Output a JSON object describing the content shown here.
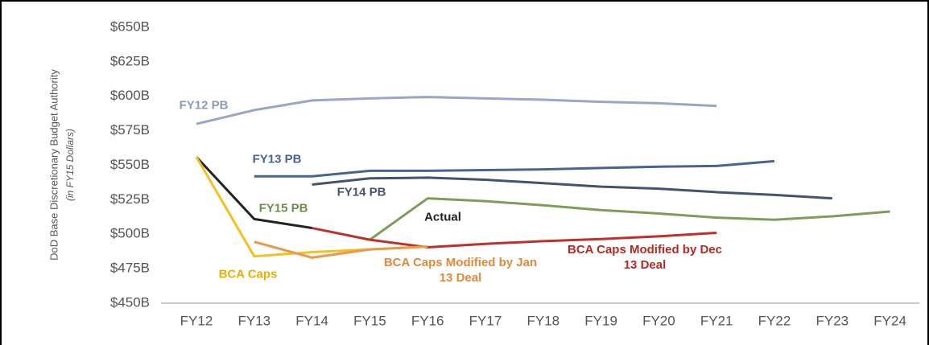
{
  "chart_data": {
    "type": "line",
    "y_label": "DoD Base Discretionary Budget Authority",
    "y_label_note": "(in FY15 Dollars)",
    "categories": [
      "FY12",
      "FY13",
      "FY14",
      "FY15",
      "FY16",
      "FY17",
      "FY18",
      "FY19",
      "FY20",
      "FY21",
      "FY22",
      "FY23",
      "FY24"
    ],
    "ylim": [
      450,
      650
    ],
    "yticks": [
      {
        "value": 450,
        "label": "$450B"
      },
      {
        "value": 475,
        "label": "$475B"
      },
      {
        "value": 500,
        "label": "$500B"
      },
      {
        "value": 525,
        "label": "$525B"
      },
      {
        "value": 550,
        "label": "$550B"
      },
      {
        "value": 575,
        "label": "$575B"
      },
      {
        "value": 600,
        "label": "$600B"
      },
      {
        "value": 625,
        "label": "$625B"
      },
      {
        "value": 650,
        "label": "$650B"
      }
    ],
    "grid": false,
    "series": [
      {
        "name": "FY12 PB",
        "color": "#9aa6c4",
        "values": [
          580,
          590,
          597,
          598.5,
          599.5,
          598.5,
          597.5,
          596,
          595,
          593,
          null,
          null,
          null
        ]
      },
      {
        "name": "FY13 PB",
        "color": "#4a6491",
        "values": [
          null,
          542,
          542,
          546,
          546,
          546.5,
          547,
          548,
          549,
          549.5,
          553,
          null,
          null
        ]
      },
      {
        "name": "FY14 PB",
        "color": "#44546a",
        "values": [
          null,
          null,
          536,
          540.5,
          541,
          539.5,
          537,
          534.5,
          533,
          530.5,
          528.5,
          526,
          null
        ]
      },
      {
        "name": "FY15 PB",
        "color": "#7f9c5a",
        "values": [
          null,
          null,
          null,
          496,
          526,
          524,
          521,
          517.5,
          515,
          512,
          510.5,
          513,
          516.5
        ]
      },
      {
        "name": "Actual",
        "color": "#222222",
        "values": [
          556,
          511,
          504.5,
          null,
          null,
          null,
          null,
          null,
          null,
          null,
          null,
          null,
          null
        ]
      },
      {
        "name": "BCA Caps Modified by Dec 13 Deal",
        "color": "#c0302a",
        "values": [
          null,
          null,
          504.5,
          496,
          490.5,
          493,
          495,
          496.5,
          498.5,
          501,
          null,
          null,
          null
        ]
      },
      {
        "name": "BCA Caps",
        "color": "#f5c020",
        "values": [
          556,
          484,
          487,
          489,
          491,
          null,
          null,
          null,
          null,
          null,
          null,
          null,
          null
        ]
      },
      {
        "name": "BCA Caps Modified by Jan 13 Deal",
        "color": "#e8994a",
        "values": [
          null,
          494.5,
          483,
          489,
          491,
          null,
          null,
          null,
          null,
          null,
          null,
          null,
          null
        ]
      }
    ]
  }
}
